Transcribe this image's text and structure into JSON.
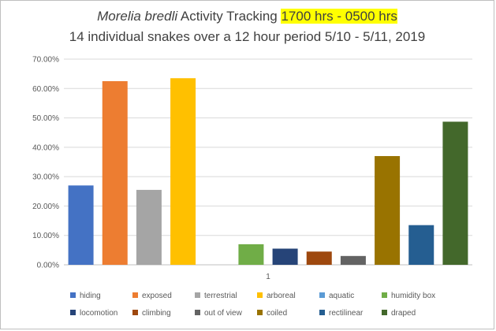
{
  "chart_data": {
    "type": "bar",
    "title": {
      "species": "Morelia bredli",
      "rest": " Activity Tracking ",
      "highlighted": "1700 hrs - 0500 hrs"
    },
    "subtitle": "14 individual snakes over a 12 hour period 5/10 - 5/11, 2019",
    "categories": [
      "1"
    ],
    "ylim": [
      0,
      0.7
    ],
    "yticks": [
      0,
      0.1,
      0.2,
      0.3,
      0.4,
      0.5,
      0.6,
      0.7
    ],
    "ytick_labels": [
      "0.00%",
      "10.00%",
      "20.00%",
      "30.00%",
      "40.00%",
      "50.00%",
      "60.00%",
      "70.00%"
    ],
    "grid": true,
    "legend_position": "bottom",
    "series": [
      {
        "name": "hiding",
        "value": 0.27,
        "color": "#4472C4"
      },
      {
        "name": "exposed",
        "value": 0.625,
        "color": "#ED7D31"
      },
      {
        "name": "terrestrial",
        "value": 0.255,
        "color": "#A5A5A5"
      },
      {
        "name": "arboreal",
        "value": 0.635,
        "color": "#FFC000"
      },
      {
        "name": "aquatic",
        "value": 0.0,
        "color": "#5B9BD5"
      },
      {
        "name": "humidity box",
        "value": 0.07,
        "color": "#70AD47"
      },
      {
        "name": "locomotion",
        "value": 0.055,
        "color": "#264478"
      },
      {
        "name": "climbing",
        "value": 0.045,
        "color": "#9E480E"
      },
      {
        "name": "out of view",
        "value": 0.03,
        "color": "#636363"
      },
      {
        "name": "coiled",
        "value": 0.37,
        "color": "#997300"
      },
      {
        "name": "rectilinear",
        "value": 0.135,
        "color": "#255E91"
      },
      {
        "name": "draped",
        "value": 0.487,
        "color": "#43682B"
      }
    ]
  }
}
